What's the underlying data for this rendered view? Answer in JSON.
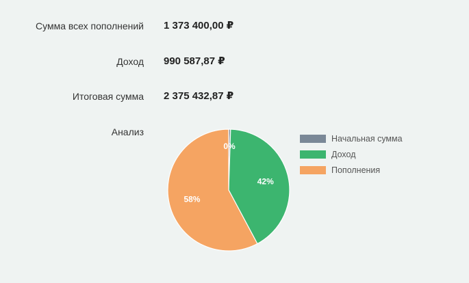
{
  "summary": {
    "total_deposits_label": "Сумма всех пополнений",
    "total_deposits_value": "1 373 400,00 ₽",
    "income_label": "Доход",
    "income_value": "990 587,87 ₽",
    "final_sum_label": "Итоговая сумма",
    "final_sum_value": "2 375 432,87 ₽"
  },
  "analysis": {
    "label": "Анализ"
  },
  "chart_data": {
    "type": "pie",
    "categories": [
      "Начальная сумма",
      "Доход",
      "Пополнения"
    ],
    "values": [
      0.5,
      41.7,
      57.8
    ],
    "data_labels": [
      "0%",
      "42%",
      "58%"
    ],
    "colors": [
      "#7a8897",
      "#3cb56f",
      "#f5a462"
    ],
    "legend_position": "right"
  }
}
